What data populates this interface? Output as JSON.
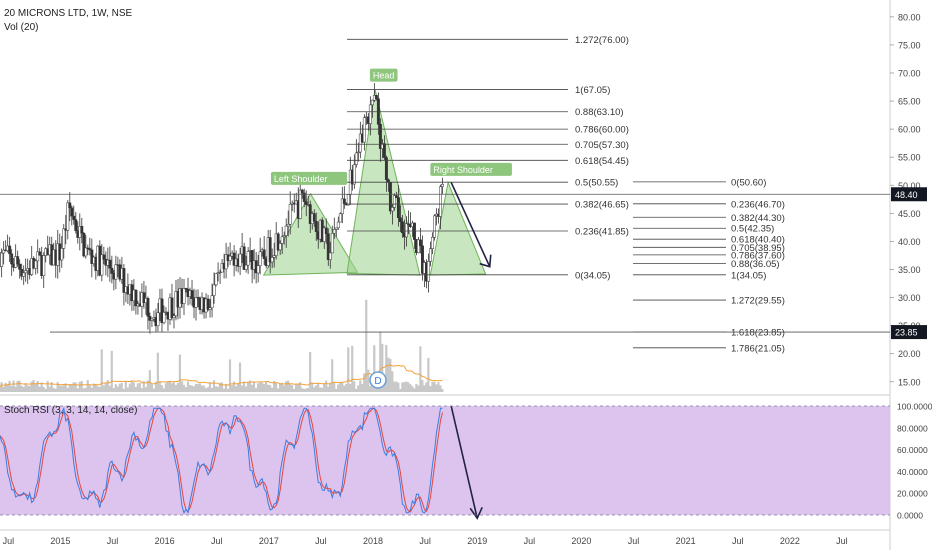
{
  "header": {
    "title": "20 MICRONS LTD, 1W, NSE",
    "volume_label": "Vol (20)"
  },
  "indicator": {
    "label": "Stoch RSI (3, 3, 14, 14, close)",
    "fill_color": "#dcc4ef",
    "k_color": "#3d7de0",
    "d_color": "#e8453c"
  },
  "colors": {
    "candle_up": "#ffffff",
    "candle_down": "#333333",
    "pattern_fill": "#9bd18b",
    "volume_ma": "#f2a23a",
    "arrow": "#222244"
  },
  "chart_data": [
    {
      "type": "candlestick",
      "title": "20 MICRONS LTD, 1W, NSE",
      "ylim": [
        13,
        83
      ],
      "y_ticks": [
        "15.00",
        "20.00",
        "25.00",
        "30.00",
        "35.00",
        "40.00",
        "45.00",
        "50.00",
        "55.00",
        "60.00",
        "65.00",
        "70.00",
        "75.00",
        "80.00"
      ],
      "x_ticks": [
        "Jul",
        "2015",
        "Jul",
        "2016",
        "Jul",
        "2017",
        "Jul",
        "2018",
        "Jul",
        "2019",
        "Jul",
        "2020",
        "Jul",
        "2021",
        "Jul",
        "2022",
        "Jul"
      ],
      "price_markers": [
        {
          "label": "48.40",
          "value": 48.4
        },
        {
          "label": "23.85",
          "value": 23.85
        }
      ],
      "series_close_approx": [
        {
          "x": "2014-06",
          "y": 38
        },
        {
          "x": "2014-09",
          "y": 35
        },
        {
          "x": "2015-01",
          "y": 38
        },
        {
          "x": "2015-02",
          "y": 46
        },
        {
          "x": "2015-04",
          "y": 38
        },
        {
          "x": "2015-07",
          "y": 35
        },
        {
          "x": "2015-10",
          "y": 30
        },
        {
          "x": "2015-12",
          "y": 27
        },
        {
          "x": "2016-03",
          "y": 30
        },
        {
          "x": "2016-06",
          "y": 29
        },
        {
          "x": "2016-09",
          "y": 38
        },
        {
          "x": "2016-12",
          "y": 36
        },
        {
          "x": "2017-05",
          "y": 48
        },
        {
          "x": "2017-08",
          "y": 38
        },
        {
          "x": "2017-12",
          "y": 60
        },
        {
          "x": "2018-01",
          "y": 67
        },
        {
          "x": "2018-03",
          "y": 47
        },
        {
          "x": "2018-06",
          "y": 40
        },
        {
          "x": "2018-07",
          "y": 34
        },
        {
          "x": "2018-09",
          "y": 50
        }
      ],
      "pattern_labels": [
        "Left Shoulder",
        "Head",
        "Right Shoulder"
      ],
      "fib_levels": [
        {
          "label": "1.272(76.00)",
          "value": 76.0
        },
        {
          "label": "1(67.05)",
          "value": 67.05
        },
        {
          "label": "0.88(63.10)",
          "value": 63.1
        },
        {
          "label": "0.786(60.00)",
          "value": 60.0
        },
        {
          "label": "0.705(57.30)",
          "value": 57.3
        },
        {
          "label": "0.618(54.45)",
          "value": 54.45
        },
        {
          "label": "0.5(50.55)",
          "value": 50.55
        },
        {
          "label": "0.382(46.65)",
          "value": 46.65
        },
        {
          "label": "0.236(41.85)",
          "value": 41.85
        },
        {
          "label": "0(34.05)",
          "value": 34.05
        }
      ],
      "fib_levels_2": [
        {
          "label": "0(50.60)",
          "value": 50.6
        },
        {
          "label": "0.236(46.70)",
          "value": 46.7
        },
        {
          "label": "0.382(44.30)",
          "value": 44.3
        },
        {
          "label": "0.5(42.35)",
          "value": 42.35
        },
        {
          "label": "0.618(40.40)",
          "value": 40.4
        },
        {
          "label": "0.705(38.95)",
          "value": 38.95
        },
        {
          "label": "0.786(37.60)",
          "value": 37.6
        },
        {
          "label": "0.88(36.05)",
          "value": 36.05
        },
        {
          "label": "1(34.05)",
          "value": 34.05
        },
        {
          "label": "1.272(29.55)",
          "value": 29.55
        },
        {
          "label": "1.618(23.85)",
          "value": 23.85
        },
        {
          "label": "1.786(21.05)",
          "value": 21.05
        }
      ]
    },
    {
      "type": "line",
      "title": "Stoch RSI (3, 3, 14, 14, close)",
      "ylim": [
        0,
        100
      ],
      "y_ticks": [
        "0.0000",
        "20.0000",
        "40.0000",
        "60.0000",
        "80.0000",
        "100.0000"
      ],
      "series_k_approx": [
        {
          "x": "2014-06",
          "y": 60
        },
        {
          "x": "2014-09",
          "y": 5
        },
        {
          "x": "2015-01",
          "y": 100
        },
        {
          "x": "2015-04",
          "y": 5
        },
        {
          "x": "2016-01",
          "y": 100
        },
        {
          "x": "2016-03",
          "y": 5
        },
        {
          "x": "2016-09",
          "y": 95
        },
        {
          "x": "2017-01",
          "y": 5
        },
        {
          "x": "2017-05",
          "y": 100
        },
        {
          "x": "2017-08",
          "y": 5
        },
        {
          "x": "2017-12",
          "y": 100
        },
        {
          "x": "2018-02",
          "y": 80
        },
        {
          "x": "2018-05",
          "y": 5
        },
        {
          "x": "2018-07",
          "y": 5
        },
        {
          "x": "2018-09",
          "y": 100
        }
      ]
    }
  ]
}
